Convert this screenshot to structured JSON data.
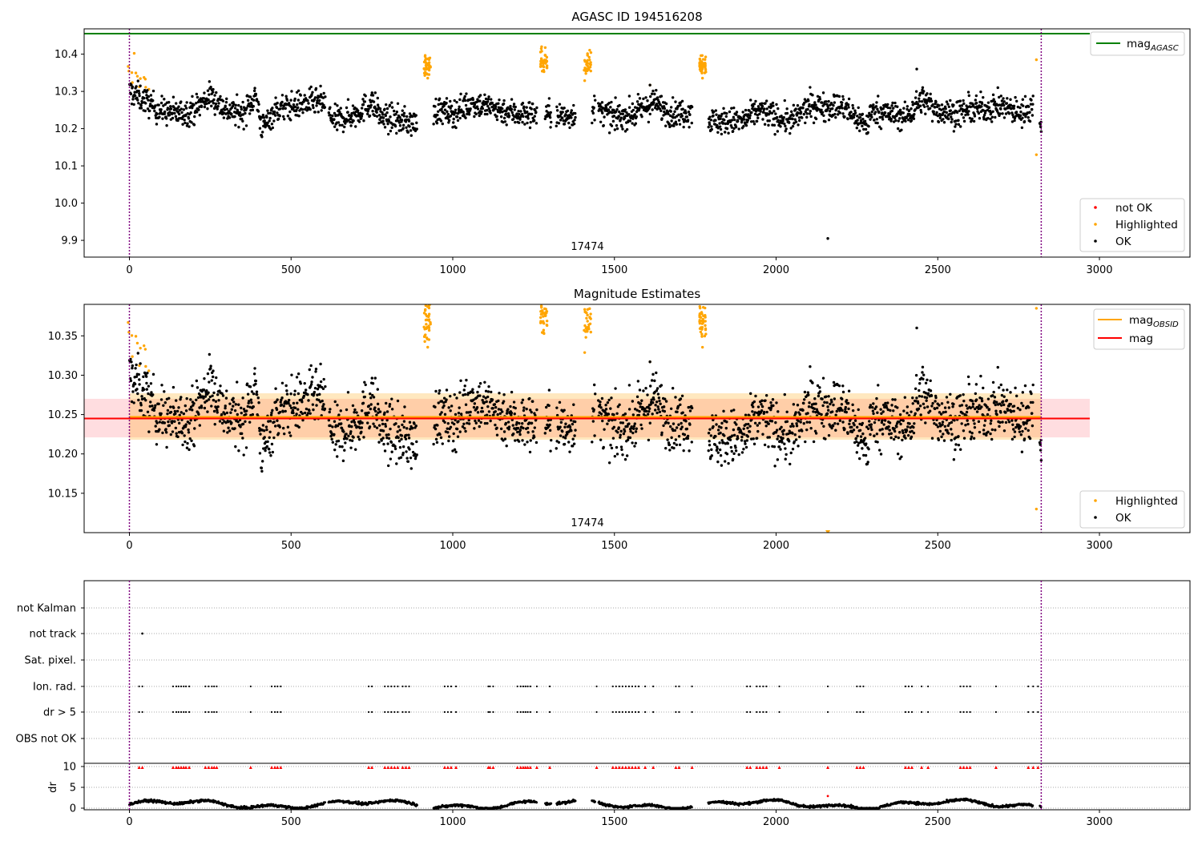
{
  "figure": {
    "obsid_label": "17474"
  },
  "chart_data": [
    {
      "type": "scatter",
      "title": "AGASC ID 194516208",
      "xlim": [
        -140,
        3280
      ],
      "ylim": [
        9.855,
        10.468
      ],
      "xticks": [
        0,
        500,
        1000,
        1500,
        2000,
        2500,
        3000
      ],
      "yticks": [
        9.9,
        10.0,
        10.1,
        10.2,
        10.3,
        10.4
      ],
      "mag_agasc": 10.455,
      "obsid_bounds": [
        0,
        2820
      ],
      "obsid_label": "17474",
      "lines_legend": [
        {
          "label": "mag",
          "sub": "AGASC",
          "color": "#008000"
        }
      ],
      "points_legend": [
        {
          "label": "not OK",
          "color": "#ff0000"
        },
        {
          "label": "Highlighted",
          "color": "#ffa500"
        },
        {
          "label": "OK",
          "color": "#000000"
        }
      ],
      "series": [
        {
          "name": "OK",
          "color": "#000000",
          "trend": [
            [
              0,
              10.3
            ],
            [
              40,
              10.28
            ],
            [
              90,
              10.25
            ],
            [
              150,
              10.24
            ],
            [
              200,
              10.25
            ],
            [
              250,
              10.29
            ],
            [
              300,
              10.25
            ],
            [
              350,
              10.24
            ],
            [
              390,
              10.29
            ],
            [
              410,
              10.2
            ],
            [
              450,
              10.25
            ],
            [
              500,
              10.26
            ],
            [
              560,
              10.27
            ],
            [
              600,
              10.27
            ],
            [
              630,
              10.22
            ],
            [
              700,
              10.24
            ],
            [
              750,
              10.27
            ],
            [
              780,
              10.23
            ],
            [
              850,
              10.22
            ],
            [
              900,
              10.21
            ],
            [
              950,
              10.25
            ],
            [
              1000,
              10.24
            ],
            [
              1060,
              10.27
            ],
            [
              1100,
              10.26
            ],
            [
              1200,
              10.24
            ],
            [
              1250,
              10.24
            ],
            [
              1300,
              10.24
            ],
            [
              1350,
              10.23
            ],
            [
              1400,
              10.25
            ],
            [
              1450,
              10.25
            ],
            [
              1500,
              10.23
            ],
            [
              1560,
              10.24
            ],
            [
              1620,
              10.27
            ],
            [
              1680,
              10.24
            ],
            [
              1760,
              10.25
            ],
            [
              1800,
              10.22
            ],
            [
              1850,
              10.22
            ],
            [
              1900,
              10.22
            ],
            [
              1950,
              10.25
            ],
            [
              2000,
              10.23
            ],
            [
              2050,
              10.22
            ],
            [
              2100,
              10.26
            ],
            [
              2200,
              10.26
            ],
            [
              2280,
              10.21
            ],
            [
              2300,
              10.25
            ],
            [
              2350,
              10.24
            ],
            [
              2400,
              10.23
            ],
            [
              2450,
              10.28
            ],
            [
              2500,
              10.25
            ],
            [
              2550,
              10.24
            ],
            [
              2600,
              10.25
            ],
            [
              2700,
              10.26
            ],
            [
              2760,
              10.24
            ],
            [
              2800,
              10.27
            ],
            [
              2820,
              10.19
            ]
          ],
          "spread": 0.018,
          "gaps": [
            [
              605,
              616
            ],
            [
              890,
              940
            ],
            [
              1260,
              1285
            ],
            [
              1305,
              1320
            ],
            [
              1380,
              1430
            ],
            [
              1440,
              1450
            ],
            [
              1740,
              1790
            ],
            [
              2795,
              2815
            ]
          ],
          "extra": [
            [
              2160,
              9.905
            ],
            [
              1610,
              10.317
            ],
            [
              2435,
              10.36
            ]
          ]
        },
        {
          "name": "Highlighted",
          "color": "#ffa500",
          "clusters": [
            [
              0,
              10.38,
              4
            ],
            [
              8,
              10.33,
              3
            ],
            [
              30,
              10.33,
              3
            ],
            [
              45,
              10.33,
              3
            ],
            [
              915,
              10.37,
              40
            ],
            [
              1275,
              10.38,
              40
            ],
            [
              1410,
              10.37,
              35
            ],
            [
              1765,
              10.37,
              40
            ]
          ],
          "extra": [
            [
              2805,
              10.385
            ],
            [
              2805,
              10.13
            ],
            [
              1610,
              10.317
            ]
          ]
        }
      ]
    },
    {
      "type": "scatter",
      "title": "Magnitude Estimates",
      "xlim": [
        -140,
        3280
      ],
      "ylim": [
        10.1,
        10.39
      ],
      "xticks": [
        0,
        500,
        1000,
        1500,
        2000,
        2500,
        3000
      ],
      "yticks": [
        10.15,
        10.2,
        10.25,
        10.3,
        10.35
      ],
      "mag": 10.245,
      "mag_band": [
        10.221,
        10.27
      ],
      "mag_obsid": 10.247,
      "mag_obsid_band": [
        10.218,
        10.277
      ],
      "obsid_bounds": [
        0,
        2820
      ],
      "obsid_label": "17474",
      "lines_legend": [
        {
          "label": "mag",
          "sub": "OBSID",
          "color": "#ffa500"
        },
        {
          "label": "mag",
          "sub": "",
          "color": "#ff0000"
        }
      ],
      "points_legend": [
        {
          "label": "Highlighted",
          "color": "#ffa500"
        },
        {
          "label": "OK",
          "color": "#000000"
        }
      ]
    },
    {
      "type": "scatter",
      "title": "",
      "xlim": [
        -140,
        3280
      ],
      "categories": [
        "not Kalman",
        "not track",
        "Sat. pixel.",
        "Ion. rad.",
        "dr > 5",
        "OBS not OK"
      ],
      "flag_times": [
        30,
        40,
        135,
        145,
        152,
        160,
        168,
        175,
        185,
        235,
        245,
        255,
        262,
        270,
        375,
        440,
        450,
        458,
        468,
        740,
        750,
        790,
        800,
        810,
        820,
        830,
        845,
        855,
        865,
        975,
        985,
        995,
        1010,
        1110,
        1115,
        1125,
        1200,
        1210,
        1218,
        1225,
        1232,
        1240,
        1260,
        1300,
        1445,
        1495,
        1505,
        1515,
        1525,
        1535,
        1545,
        1555,
        1565,
        1575,
        1595,
        1620,
        1690,
        1700,
        1740,
        1910,
        1920,
        1940,
        1950,
        1960,
        1970,
        2010,
        2160,
        2250,
        2260,
        2270,
        2400,
        2410,
        2420,
        2450,
        2470,
        2570,
        2580,
        2590,
        2600,
        2680,
        2780,
        2795,
        2810
      ],
      "not_track": [
        40
      ],
      "dr_yticks": [
        0,
        5,
        10
      ],
      "dr_ylabel": "dr",
      "xticks": [
        0,
        500,
        1000,
        1500,
        2000,
        2500,
        3000
      ]
    }
  ]
}
